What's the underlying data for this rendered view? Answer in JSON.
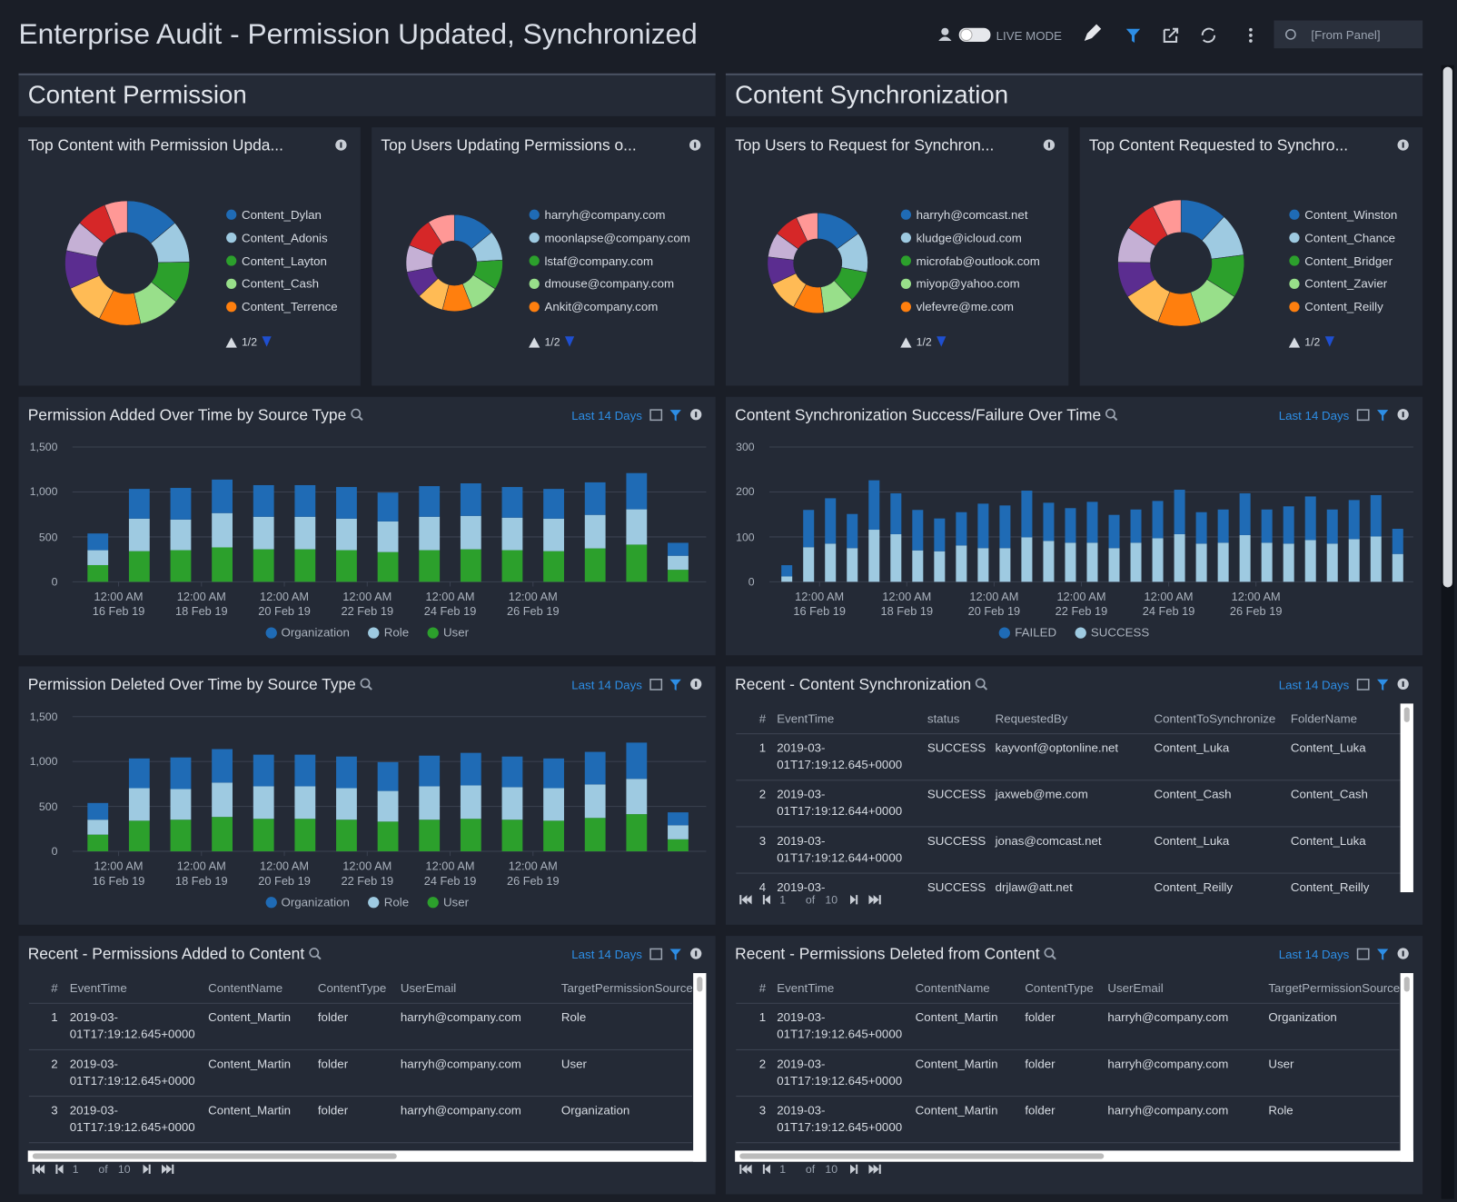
{
  "header": {
    "title": "Enterprise Audit - Permission Updated, Synchronized",
    "live_mode": "LIVE MODE",
    "time_range": "[From Panel]"
  },
  "sections": [
    "Content Permission",
    "Content Synchronization"
  ],
  "pies": [
    {
      "type": "pie",
      "title": "Top Content with Permission Upda...",
      "categories": [
        "Content_Dylan",
        "Content_Adonis",
        "Content_Layton",
        "Content_Cash",
        "Content_Terrence",
        null,
        null,
        null,
        null,
        null
      ],
      "values": [
        14,
        11,
        11,
        11,
        11,
        11,
        10,
        8,
        8,
        6
      ],
      "colors": [
        "#1f6bb5",
        "#9ecae1",
        "#2ca02c",
        "#98df8a",
        "#ff7f0e",
        "#ffbb55",
        "#5b2d90",
        "#c5b0d5",
        "#d62728",
        "#ff9896"
      ],
      "page": "1/2"
    },
    {
      "type": "pie",
      "title": "Top Users Updating Permissions o...",
      "categories": [
        "harryh@company.com",
        "moonlapse@company.com",
        "lstaf@company.com",
        "dmouse@company.com",
        "Ankit@company.com",
        null,
        null,
        null,
        null,
        null
      ],
      "values": [
        14,
        10,
        10,
        10,
        10,
        9,
        9,
        9,
        10,
        9
      ],
      "colors": [
        "#1f6bb5",
        "#9ecae1",
        "#2ca02c",
        "#98df8a",
        "#ff7f0e",
        "#ffbb55",
        "#5b2d90",
        "#c5b0d5",
        "#d62728",
        "#ff9896"
      ],
      "page": "1/2"
    },
    {
      "type": "pie",
      "title": "Top Users to Request for Synchron...",
      "categories": [
        "harryh@comcast.net",
        "kludge@icloud.com",
        "microfab@outlook.com",
        "miyop@yahoo.com",
        "vlefevre@me.com",
        null,
        null,
        null,
        null,
        null
      ],
      "values": [
        15,
        13,
        10,
        10,
        10,
        10,
        9,
        8,
        8,
        7
      ],
      "colors": [
        "#1f6bb5",
        "#9ecae1",
        "#2ca02c",
        "#98df8a",
        "#ff7f0e",
        "#ffbb55",
        "#5b2d90",
        "#c5b0d5",
        "#d62728",
        "#ff9896"
      ],
      "page": "1/2"
    },
    {
      "type": "pie",
      "title": "Top Content Requested to Synchro...",
      "categories": [
        "Content_Winston",
        "Content_Chance",
        "Content_Bridger",
        "Content_Zavier",
        "Content_Reilly",
        null,
        null,
        null,
        null,
        null
      ],
      "values": [
        13,
        12,
        12,
        12,
        12,
        11,
        10,
        10,
        9,
        8
      ],
      "colors": [
        "#1f6bb5",
        "#9ecae1",
        "#2ca02c",
        "#98df8a",
        "#ff7f0e",
        "#ffbb55",
        "#5b2d90",
        "#c5b0d5",
        "#d62728",
        "#ff9896"
      ],
      "page": "1/2"
    }
  ],
  "bar_charts": [
    {
      "type": "bar",
      "stacked": true,
      "title": "Permission Added Over Time by Source Type",
      "range": "Last 14 Days",
      "grid": true,
      "x": [
        "2019-02-15",
        "2019-02-16",
        "2019-02-17",
        "2019-02-18",
        "2019-02-19",
        "2019-02-20",
        "2019-02-21",
        "2019-02-22",
        "2019-02-23",
        "2019-02-24",
        "2019-02-25",
        "2019-02-26",
        "2019-02-27",
        "2019-02-28",
        "2019-03-01"
      ],
      "xlim": [
        "2019-02-15",
        "2019-03-02"
      ],
      "xticks": [
        {
          "value": "2019-02-16T00:00",
          "label": "12:00 AM\n16 Feb 19"
        },
        {
          "value": "2019-02-18T00:00",
          "label": "12:00 AM\n18 Feb 19"
        },
        {
          "value": "2019-02-20T00:00",
          "label": "12:00 AM\n20 Feb 19"
        },
        {
          "value": "2019-02-22T00:00",
          "label": "12:00 AM\n22 Feb 19"
        },
        {
          "value": "2019-02-24T00:00",
          "label": "12:00 AM\n24 Feb 19"
        },
        {
          "value": "2019-02-26T00:00",
          "label": "12:00 AM\n26 Feb 19"
        }
      ],
      "ylim": [
        0,
        1500
      ],
      "yticks": [
        0,
        500,
        {
          "value": 1000,
          "label": "1,000"
        },
        {
          "value": 1500,
          "label": "1,500"
        }
      ],
      "series": [
        {
          "name": "Organization",
          "color": "#1f6bb5",
          "values": [
            186,
            331,
            352,
            373,
            352,
            352,
            352,
            321,
            341,
            362,
            341,
            331,
            362,
            403,
            144
          ]
        },
        {
          "name": "Role",
          "color": "#9ecae1",
          "values": [
            166,
            362,
            341,
            382,
            362,
            362,
            351,
            341,
            372,
            372,
            362,
            362,
            373,
            393,
            156
          ]
        },
        {
          "name": "User",
          "color": "#2ca02c",
          "values": [
            186,
            341,
            352,
            383,
            362,
            362,
            352,
            331,
            352,
            362,
            352,
            341,
            372,
            414,
            134
          ]
        }
      ]
    },
    {
      "type": "bar",
      "stacked": true,
      "title": "Content Synchronization Success/Failure Over Time",
      "range": "Last 14 Days",
      "grid": true,
      "x": [
        "2019-02-15T00:00",
        "2019-02-15T12:00",
        "2019-02-16T00:00",
        "2019-02-16T12:00",
        "2019-02-17T00:00",
        "2019-02-17T12:00",
        "2019-02-18T00:00",
        "2019-02-18T12:00",
        "2019-02-19T00:00",
        "2019-02-19T12:00",
        "2019-02-20T00:00",
        "2019-02-20T12:00",
        "2019-02-21T00:00",
        "2019-02-21T12:00",
        "2019-02-22T00:00",
        "2019-02-22T12:00",
        "2019-02-23T00:00",
        "2019-02-23T12:00",
        "2019-02-24T00:00",
        "2019-02-24T12:00",
        "2019-02-25T00:00",
        "2019-02-25T12:00",
        "2019-02-26T00:00",
        "2019-02-26T12:00",
        "2019-02-27T00:00",
        "2019-02-27T12:00",
        "2019-02-28T00:00",
        "2019-02-28T12:00",
        "2019-03-01T00:00"
      ],
      "xlim": [
        "2019-02-15T00:00",
        "2019-03-01T12:00"
      ],
      "xticks": [
        {
          "value": "2019-02-16T00:00",
          "label": "12:00 AM\n16 Feb 19"
        },
        {
          "value": "2019-02-18T00:00",
          "label": "12:00 AM\n18 Feb 19"
        },
        {
          "value": "2019-02-20T00:00",
          "label": "12:00 AM\n20 Feb 19"
        },
        {
          "value": "2019-02-22T00:00",
          "label": "12:00 AM\n22 Feb 19"
        },
        {
          "value": "2019-02-24T00:00",
          "label": "12:00 AM\n24 Feb 19"
        },
        {
          "value": "2019-02-26T00:00",
          "label": "12:00 AM\n26 Feb 19"
        }
      ],
      "ylim": [
        0,
        300
      ],
      "yticks": [
        0,
        100,
        200,
        300
      ],
      "series": [
        {
          "name": "FAILED",
          "color": "#1f6bb5",
          "values": [
            25,
            83,
            101,
            76,
            110,
            91,
            90,
            73,
            74,
            99,
            95,
            104,
            85,
            77,
            91,
            74,
            74,
            83,
            99,
            70,
            74,
            93,
            74,
            83,
            97,
            76,
            87,
            92,
            56
          ]
        },
        {
          "name": "SUCCESS",
          "color": "#9ecae1",
          "values": [
            12,
            77,
            85,
            75,
            116,
            106,
            70,
            68,
            81,
            75,
            75,
            99,
            91,
            87,
            87,
            75,
            87,
            97,
            106,
            85,
            87,
            104,
            87,
            85,
            93,
            85,
            95,
            101,
            62
          ]
        }
      ]
    },
    {
      "type": "bar",
      "stacked": true,
      "title": "Permission Deleted Over Time by Source Type",
      "range": "Last 14 Days",
      "grid": true,
      "x": [
        "2019-02-15",
        "2019-02-16",
        "2019-02-17",
        "2019-02-18",
        "2019-02-19",
        "2019-02-20",
        "2019-02-21",
        "2019-02-22",
        "2019-02-23",
        "2019-02-24",
        "2019-02-25",
        "2019-02-26",
        "2019-02-27",
        "2019-02-28",
        "2019-03-01"
      ],
      "xlim": [
        "2019-02-15",
        "2019-03-02"
      ],
      "xticks": [
        {
          "value": "2019-02-16T00:00",
          "label": "12:00 AM\n16 Feb 19"
        },
        {
          "value": "2019-02-18T00:00",
          "label": "12:00 AM\n18 Feb 19"
        },
        {
          "value": "2019-02-20T00:00",
          "label": "12:00 AM\n20 Feb 19"
        },
        {
          "value": "2019-02-22T00:00",
          "label": "12:00 AM\n22 Feb 19"
        },
        {
          "value": "2019-02-24T00:00",
          "label": "12:00 AM\n24 Feb 19"
        },
        {
          "value": "2019-02-26T00:00",
          "label": "12:00 AM\n26 Feb 19"
        }
      ],
      "ylim": [
        0,
        1500
      ],
      "yticks": [
        0,
        500,
        {
          "value": 1000,
          "label": "1,000"
        },
        {
          "value": 1500,
          "label": "1,500"
        }
      ],
      "series": [
        {
          "name": "Organization",
          "color": "#1f6bb5",
          "values": [
            186,
            331,
            352,
            373,
            352,
            352,
            352,
            321,
            341,
            362,
            341,
            331,
            362,
            403,
            144
          ]
        },
        {
          "name": "Role",
          "color": "#9ecae1",
          "values": [
            166,
            362,
            341,
            382,
            362,
            362,
            351,
            341,
            372,
            372,
            362,
            362,
            373,
            393,
            156
          ]
        },
        {
          "name": "User",
          "color": "#2ca02c",
          "values": [
            186,
            341,
            352,
            383,
            362,
            362,
            352,
            331,
            352,
            362,
            352,
            341,
            372,
            414,
            134
          ]
        }
      ]
    }
  ],
  "tables": [
    {
      "title": "Recent - Content Synchronization",
      "range": "Last 14 Days",
      "columns": [
        "#",
        "EventTime",
        "status",
        "RequestedBy",
        "ContentToSynchronize",
        "FolderName"
      ],
      "rows": [
        [
          "1",
          "2019-03-01T17:19:12.645+0000",
          "SUCCESS",
          "kayvonf@optonline.net",
          "Content_Luka",
          "Content_Luka"
        ],
        [
          "2",
          "2019-03-01T17:19:12.644+0000",
          "SUCCESS",
          "jaxweb@me.com",
          "Content_Cash",
          "Content_Cash"
        ],
        [
          "3",
          "2019-03-01T17:19:12.644+0000",
          "SUCCESS",
          "jonas@comcast.net",
          "Content_Luka",
          "Content_Luka"
        ],
        [
          "4",
          "2019-03-",
          "SUCCESS",
          "drjlaw@att.net",
          "Content_Reilly",
          "Content_Reilly"
        ]
      ],
      "pager": {
        "page": 1,
        "of": "of",
        "pages": 10
      }
    },
    {
      "title": "Recent - Permissions Added to Content",
      "range": "Last 14 Days",
      "columns": [
        "#",
        "EventTime",
        "ContentName",
        "ContentType",
        "UserEmail",
        "TargetPermissionSource"
      ],
      "rows": [
        [
          "1",
          "2019-03-01T17:19:12.645+0000",
          "Content_Martin",
          "folder",
          "harryh@company.com",
          "Role"
        ],
        [
          "2",
          "2019-03-01T17:19:12.645+0000",
          "Content_Martin",
          "folder",
          "harryh@company.com",
          "User"
        ],
        [
          "3",
          "2019-03-01T17:19:12.645+0000",
          "Content_Martin",
          "folder",
          "harryh@company.com",
          "Organization"
        ]
      ],
      "pager": {
        "page": 1,
        "of": "of",
        "pages": 10
      }
    },
    {
      "title": "Recent - Permissions Deleted from Content",
      "range": "Last 14 Days",
      "columns": [
        "#",
        "EventTime",
        "ContentName",
        "ContentType",
        "UserEmail",
        "TargetPermissionSource"
      ],
      "rows": [
        [
          "1",
          "2019-03-01T17:19:12.645+0000",
          "Content_Martin",
          "folder",
          "harryh@company.com",
          "Organization"
        ],
        [
          "2",
          "2019-03-01T17:19:12.645+0000",
          "Content_Martin",
          "folder",
          "harryh@company.com",
          "User"
        ],
        [
          "3",
          "2019-03-01T17:19:12.645+0000",
          "Content_Martin",
          "folder",
          "harryh@company.com",
          "Role"
        ]
      ],
      "pager": {
        "page": 1,
        "of": "of",
        "pages": 10
      }
    }
  ]
}
